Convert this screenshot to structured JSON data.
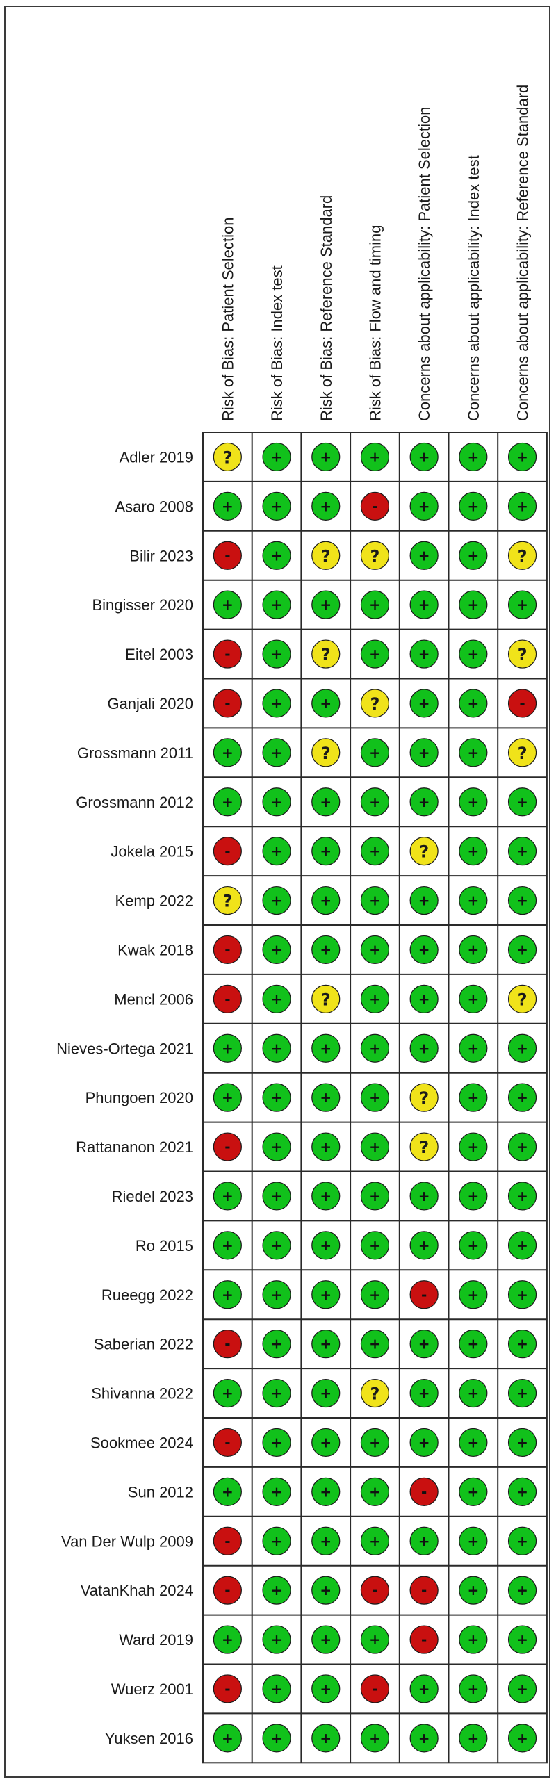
{
  "chart_data": {
    "type": "table",
    "domains": [
      "Risk of Bias: Patient Selection",
      "Risk of Bias: Index test",
      "Risk of Bias: Reference Standard",
      "Risk of Bias: Flow and timing",
      "Concerns about applicability: Patient Selection",
      "Concerns about applicability: Index test",
      "Concerns about applicability: Reference Standard"
    ],
    "studies": [
      {
        "name": "Adler 2019",
        "ratings": [
          "?",
          "+",
          "+",
          "+",
          "+",
          "+",
          "+"
        ]
      },
      {
        "name": "Asaro 2008",
        "ratings": [
          "+",
          "+",
          "+",
          "-",
          "+",
          "+",
          "+"
        ]
      },
      {
        "name": "Bilir 2023",
        "ratings": [
          "-",
          "+",
          "?",
          "?",
          "+",
          "+",
          "?"
        ]
      },
      {
        "name": "Bingisser 2020",
        "ratings": [
          "+",
          "+",
          "+",
          "+",
          "+",
          "+",
          "+"
        ]
      },
      {
        "name": "Eitel 2003",
        "ratings": [
          "-",
          "+",
          "?",
          "+",
          "+",
          "+",
          "?"
        ]
      },
      {
        "name": "Ganjali 2020",
        "ratings": [
          "-",
          "+",
          "+",
          "?",
          "+",
          "+",
          "-"
        ]
      },
      {
        "name": "Grossmann 2011",
        "ratings": [
          "+",
          "+",
          "?",
          "+",
          "+",
          "+",
          "?"
        ]
      },
      {
        "name": "Grossmann 2012",
        "ratings": [
          "+",
          "+",
          "+",
          "+",
          "+",
          "+",
          "+"
        ]
      },
      {
        "name": "Jokela 2015",
        "ratings": [
          "-",
          "+",
          "+",
          "+",
          "?",
          "+",
          "+"
        ]
      },
      {
        "name": "Kemp 2022",
        "ratings": [
          "?",
          "+",
          "+",
          "+",
          "+",
          "+",
          "+"
        ]
      },
      {
        "name": "Kwak 2018",
        "ratings": [
          "-",
          "+",
          "+",
          "+",
          "+",
          "+",
          "+"
        ]
      },
      {
        "name": "Mencl 2006",
        "ratings": [
          "-",
          "+",
          "?",
          "+",
          "+",
          "+",
          "?"
        ]
      },
      {
        "name": "Nieves-Ortega 2021",
        "ratings": [
          "+",
          "+",
          "+",
          "+",
          "+",
          "+",
          "+"
        ]
      },
      {
        "name": "Phungoen 2020",
        "ratings": [
          "+",
          "+",
          "+",
          "+",
          "?",
          "+",
          "+"
        ]
      },
      {
        "name": "Rattananon 2021",
        "ratings": [
          "-",
          "+",
          "+",
          "+",
          "?",
          "+",
          "+"
        ]
      },
      {
        "name": "Riedel 2023",
        "ratings": [
          "+",
          "+",
          "+",
          "+",
          "+",
          "+",
          "+"
        ]
      },
      {
        "name": "Ro 2015",
        "ratings": [
          "+",
          "+",
          "+",
          "+",
          "+",
          "+",
          "+"
        ]
      },
      {
        "name": "Rueegg 2022",
        "ratings": [
          "+",
          "+",
          "+",
          "+",
          "-",
          "+",
          "+"
        ]
      },
      {
        "name": "Saberian 2022",
        "ratings": [
          "-",
          "+",
          "+",
          "+",
          "+",
          "+",
          "+"
        ]
      },
      {
        "name": "Shivanna 2022",
        "ratings": [
          "+",
          "+",
          "+",
          "?",
          "+",
          "+",
          "+"
        ]
      },
      {
        "name": "Sookmee 2024",
        "ratings": [
          "-",
          "+",
          "+",
          "+",
          "+",
          "+",
          "+"
        ]
      },
      {
        "name": "Sun 2012",
        "ratings": [
          "+",
          "+",
          "+",
          "+",
          "-",
          "+",
          "+"
        ]
      },
      {
        "name": "Van Der Wulp 2009",
        "ratings": [
          "-",
          "+",
          "+",
          "+",
          "+",
          "+",
          "+"
        ]
      },
      {
        "name": "VatanKhah 2024",
        "ratings": [
          "-",
          "+",
          "+",
          "-",
          "-",
          "+",
          "+"
        ]
      },
      {
        "name": "Ward 2019",
        "ratings": [
          "+",
          "+",
          "+",
          "+",
          "-",
          "+",
          "+"
        ]
      },
      {
        "name": "Wuerz 2001",
        "ratings": [
          "-",
          "+",
          "+",
          "-",
          "+",
          "+",
          "+"
        ]
      },
      {
        "name": "Yuksen 2016",
        "ratings": [
          "+",
          "+",
          "+",
          "+",
          "+",
          "+",
          "+"
        ]
      }
    ],
    "rating_colors": {
      "+": "#11c11b",
      "-": "#c91010",
      "?": "#f0e31a"
    }
  }
}
